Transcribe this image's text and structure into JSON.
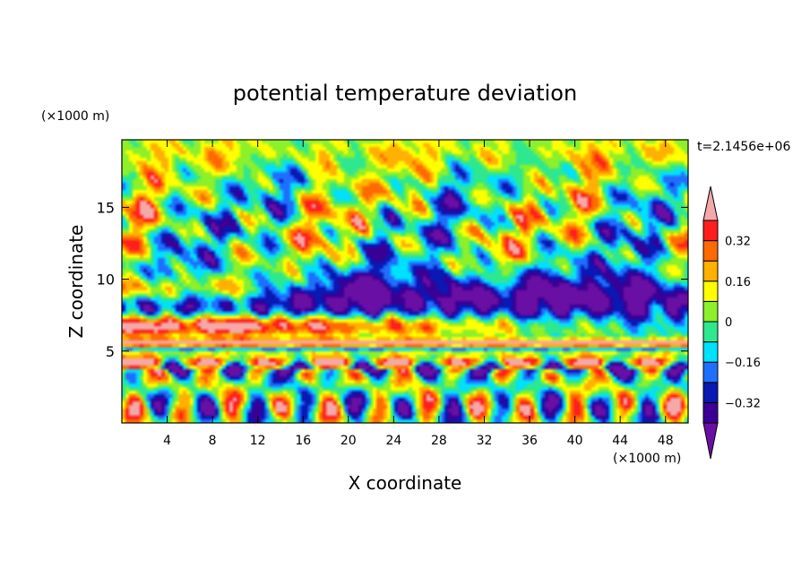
{
  "chart_data": {
    "type": "heatmap",
    "title": "potential temperature deviation",
    "xlabel": "X coordinate",
    "ylabel": "Z coordinate",
    "x_unit": "(×1000 m)",
    "y_unit": "(×1000 m)",
    "time_label": "t=2.1456e+06",
    "xlim": [
      0,
      50
    ],
    "ylim": [
      0,
      19.7
    ],
    "x_ticks": [
      4,
      8,
      12,
      16,
      20,
      24,
      28,
      32,
      36,
      40,
      44,
      48
    ],
    "y_ticks": [
      5,
      10,
      15
    ],
    "colorbar": {
      "levels": [
        -0.4,
        -0.32,
        -0.24,
        -0.16,
        -0.08,
        0,
        0.08,
        0.16,
        0.24,
        0.32,
        0.4
      ],
      "tick_values": [
        0.32,
        0.16,
        0,
        -0.16,
        -0.32
      ],
      "tick_labels": [
        "0.32",
        "0.16",
        "0",
        "−0.16",
        "−0.32"
      ],
      "colors": [
        "#6a0fa3",
        "#3a0096",
        "#0a18b4",
        "#1f6fff",
        "#00e0ff",
        "#2ee890",
        "#8cf02a",
        "#ffff00",
        "#ffb000",
        "#ff6a00",
        "#ff1e1e",
        "#f5a8a8"
      ],
      "extend": "both"
    },
    "grid": false
  }
}
